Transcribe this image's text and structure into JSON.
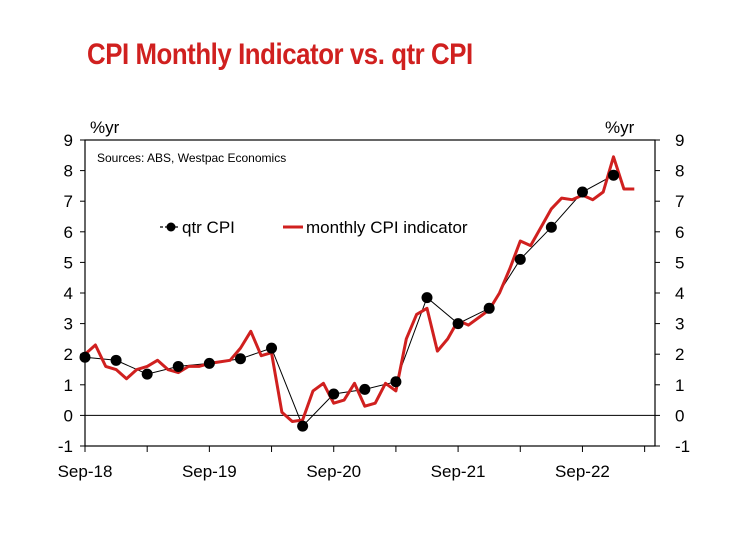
{
  "title": "CPI Monthly Indicator vs. qtr CPI",
  "chart_data": {
    "type": "line",
    "title": "CPI Monthly Indicator vs. qtr CPI",
    "source_note": "Sources: ABS, Westpac Economics",
    "ylabel_left": "%yr",
    "ylabel_right": "%yr",
    "ylim": [
      -1,
      9
    ],
    "yticks": [
      "-1",
      "0",
      "1",
      "2",
      "3",
      "4",
      "5",
      "6",
      "7",
      "8",
      "9"
    ],
    "xlim": [
      0,
      55
    ],
    "xticks": [
      {
        "x": 0,
        "label": "Sep-18"
      },
      {
        "x": 12,
        "label": "Sep-19"
      },
      {
        "x": 24,
        "label": "Sep-20"
      },
      {
        "x": 36,
        "label": "Sep-21"
      },
      {
        "x": 48,
        "label": "Sep-22"
      }
    ],
    "minor_ticks": [
      0,
      6,
      12,
      18,
      24,
      30,
      36,
      42,
      48,
      54
    ],
    "series": [
      {
        "name": "qtr CPI",
        "color": "#000000",
        "style": "line-markers",
        "x": [
          0,
          3,
          6,
          9,
          12,
          15,
          18,
          21,
          24,
          27,
          30,
          33,
          36,
          39,
          42,
          45,
          48,
          51
        ],
        "values": [
          1.9,
          1.8,
          1.35,
          1.6,
          1.7,
          1.85,
          2.2,
          -0.35,
          0.7,
          0.85,
          1.1,
          3.85,
          3.0,
          3.5,
          5.1,
          6.15,
          7.3,
          7.85
        ]
      },
      {
        "name": "monthly CPI indicator",
        "color": "#d0201f",
        "style": "line",
        "x": [
          0,
          1,
          2,
          3,
          4,
          5,
          6,
          7,
          8,
          9,
          10,
          11,
          12,
          13,
          14,
          15,
          16,
          17,
          18,
          19,
          20,
          21,
          22,
          23,
          24,
          25,
          26,
          27,
          28,
          29,
          30,
          31,
          32,
          33,
          34,
          35,
          36,
          37,
          38,
          39,
          40,
          41,
          42,
          43,
          44,
          45,
          46,
          47,
          48,
          49,
          50,
          51,
          52,
          53
        ],
        "values": [
          2.0,
          2.3,
          1.6,
          1.5,
          1.2,
          1.5,
          1.6,
          1.8,
          1.5,
          1.4,
          1.6,
          1.6,
          1.7,
          1.75,
          1.8,
          2.2,
          2.75,
          1.95,
          2.05,
          0.1,
          -0.2,
          -0.15,
          0.8,
          1.05,
          0.4,
          0.5,
          1.05,
          0.3,
          0.4,
          1.05,
          0.8,
          2.5,
          3.3,
          3.5,
          2.1,
          2.5,
          3.1,
          2.95,
          3.2,
          3.45,
          4.0,
          4.8,
          5.7,
          5.55,
          6.15,
          6.75,
          7.1,
          7.05,
          7.2,
          7.05,
          7.3,
          8.45,
          7.4,
          7.4
        ]
      }
    ],
    "legend": [
      "qtr CPI",
      "monthly CPI indicator"
    ]
  }
}
